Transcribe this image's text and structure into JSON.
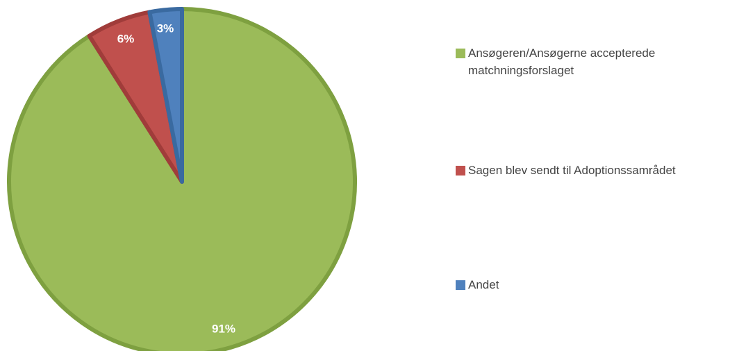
{
  "chart_data": {
    "type": "pie",
    "title": "",
    "categories": [
      "Ansøgeren/Ansøgerne accepterede matchningsforslaget",
      "Sagen blev sendt til Adoptionssamrådet",
      "Andet"
    ],
    "values": [
      91,
      6,
      3
    ],
    "labels": [
      "91%",
      "6%",
      "3%"
    ],
    "colors": [
      "#9bbb59",
      "#c0504d",
      "#4f81bd"
    ],
    "border_colors": [
      "#7ea040",
      "#a03c3a",
      "#3a6aa0"
    ],
    "start_angle_deg": 0,
    "direction": "clockwise",
    "legend_position": "right"
  }
}
